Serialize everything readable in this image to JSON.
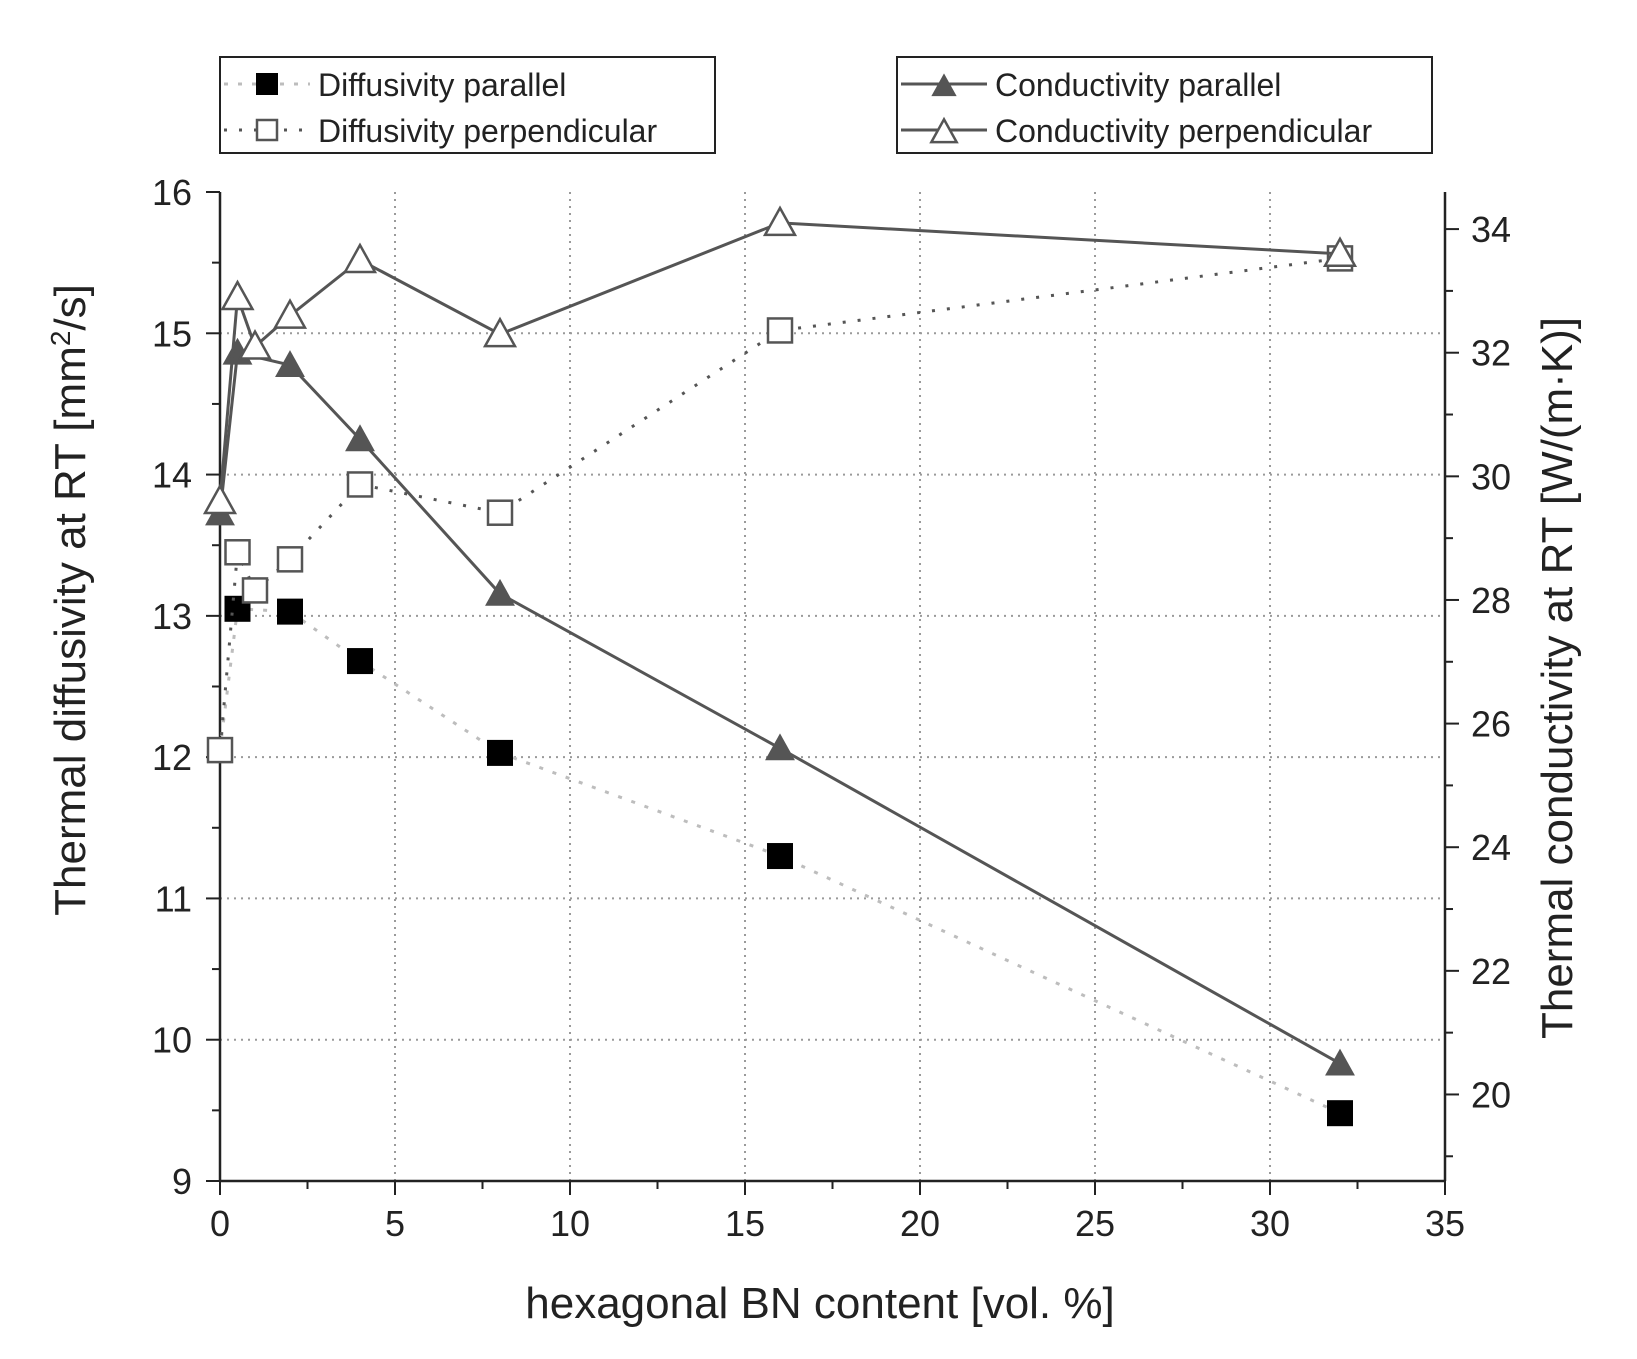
{
  "chart_data": {
    "type": "line",
    "title": "",
    "xlabel": "hexagonal BN content [vol. %]",
    "ylabel_left": {
      "prefix": "Thermal diffusivity at RT [mm",
      "sup": "2",
      "suffix": "/s]"
    },
    "ylabel_right": "Thermal conductivity at RT [W/(m·K)]",
    "xlim": [
      0,
      35
    ],
    "ylim_left": [
      9,
      16
    ],
    "ylim_right": [
      18.6,
      34.6
    ],
    "xticks": [
      0,
      5,
      10,
      15,
      20,
      25,
      30,
      35
    ],
    "yticks_left": [
      9,
      10,
      11,
      12,
      13,
      14,
      15,
      16
    ],
    "yticks_right": [
      20,
      22,
      24,
      26,
      28,
      30,
      32,
      34
    ],
    "grid": true,
    "series": [
      {
        "name": "Diffusivity parallel",
        "axis": "left",
        "marker": "square-filled",
        "line": "dotted-light",
        "x": [
          0,
          0.5,
          2,
          4,
          8,
          16,
          32
        ],
        "y": [
          12.05,
          13.05,
          13.03,
          12.68,
          12.03,
          11.3,
          9.48
        ]
      },
      {
        "name": "Diffusivity perpendicular",
        "axis": "left",
        "marker": "square-open",
        "line": "dotted-dark",
        "x": [
          0,
          0.5,
          1,
          2,
          4,
          8,
          16,
          32
        ],
        "y": [
          12.05,
          13.45,
          13.18,
          13.4,
          13.93,
          13.73,
          15.02,
          15.53
        ]
      },
      {
        "name": "Conductivity parallel",
        "axis": "right",
        "marker": "triangle-filled",
        "line": "solid",
        "x": [
          0,
          0.5,
          2,
          4,
          8,
          16,
          32
        ],
        "y": [
          29.4,
          32.0,
          31.8,
          30.6,
          28.1,
          25.6,
          20.5
        ]
      },
      {
        "name": "Conductivity perpendicular",
        "axis": "right",
        "marker": "triangle-open",
        "line": "solid",
        "x": [
          0,
          0.5,
          1,
          2,
          4,
          8,
          16,
          32
        ],
        "y": [
          29.6,
          32.9,
          32.1,
          32.6,
          33.5,
          32.3,
          34.1,
          33.6
        ]
      }
    ],
    "legend": [
      {
        "group": "left",
        "labels": [
          "Diffusivity parallel",
          "Diffusivity perpendicular"
        ]
      },
      {
        "group": "right",
        "labels": [
          "Conductivity parallel",
          "Conductivity perpendicular"
        ]
      }
    ],
    "colors": {
      "dark": "#555555",
      "black": "#000000",
      "light": "#bdbdbd",
      "grid": "#9a9a9a",
      "axis": "#222222"
    }
  }
}
